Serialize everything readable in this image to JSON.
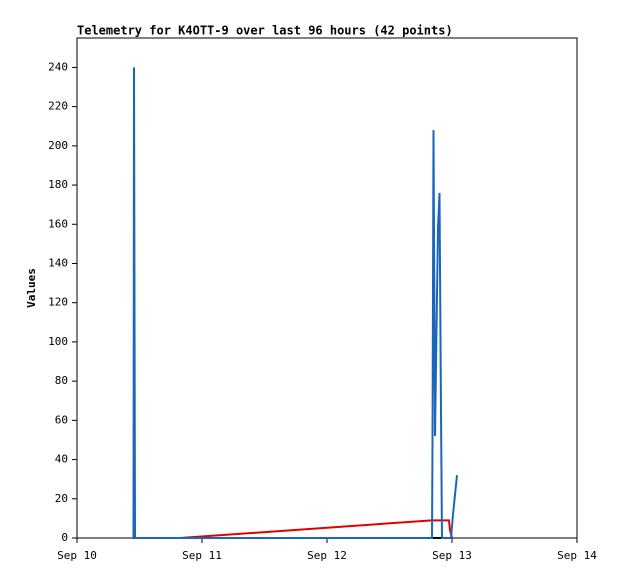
{
  "chart_data": {
    "type": "line",
    "title": "Telemetry for K4OTT-9 over last 96 hours (42 points)",
    "ylabel": "Values",
    "xlim": [
      0,
      4
    ],
    "xticks": [
      {
        "value": 0,
        "label": "Sep 10"
      },
      {
        "value": 1,
        "label": "Sep 11"
      },
      {
        "value": 2,
        "label": "Sep 12"
      },
      {
        "value": 3,
        "label": "Sep 13"
      },
      {
        "value": 4,
        "label": "Sep 14"
      }
    ],
    "ylim": [
      0,
      255
    ],
    "yticks": [
      0,
      20,
      40,
      60,
      80,
      100,
      120,
      140,
      160,
      180,
      200,
      220,
      240
    ],
    "series": [
      {
        "color": "#000000",
        "x": [
          0.452,
          2.84,
          3.0
        ],
        "values": [
          0,
          0,
          0
        ]
      },
      {
        "color": "#e00000",
        "x": [
          0.824,
          2.84,
          2.976,
          2.984,
          3.0
        ],
        "values": [
          0,
          9,
          9,
          4,
          0
        ]
      },
      {
        "color": "#1a66bb",
        "x": [
          0.452,
          0.456,
          0.46,
          0.464,
          2.84,
          2.844,
          2.852,
          2.864,
          2.872,
          2.88,
          2.888,
          2.9,
          2.912,
          2.92,
          2.992,
          3.008,
          3.04
        ],
        "values": [
          0,
          240,
          120,
          0,
          0,
          48,
          208,
          52,
          88,
          124,
          158,
          176,
          64,
          0,
          0,
          12,
          32
        ]
      }
    ]
  }
}
